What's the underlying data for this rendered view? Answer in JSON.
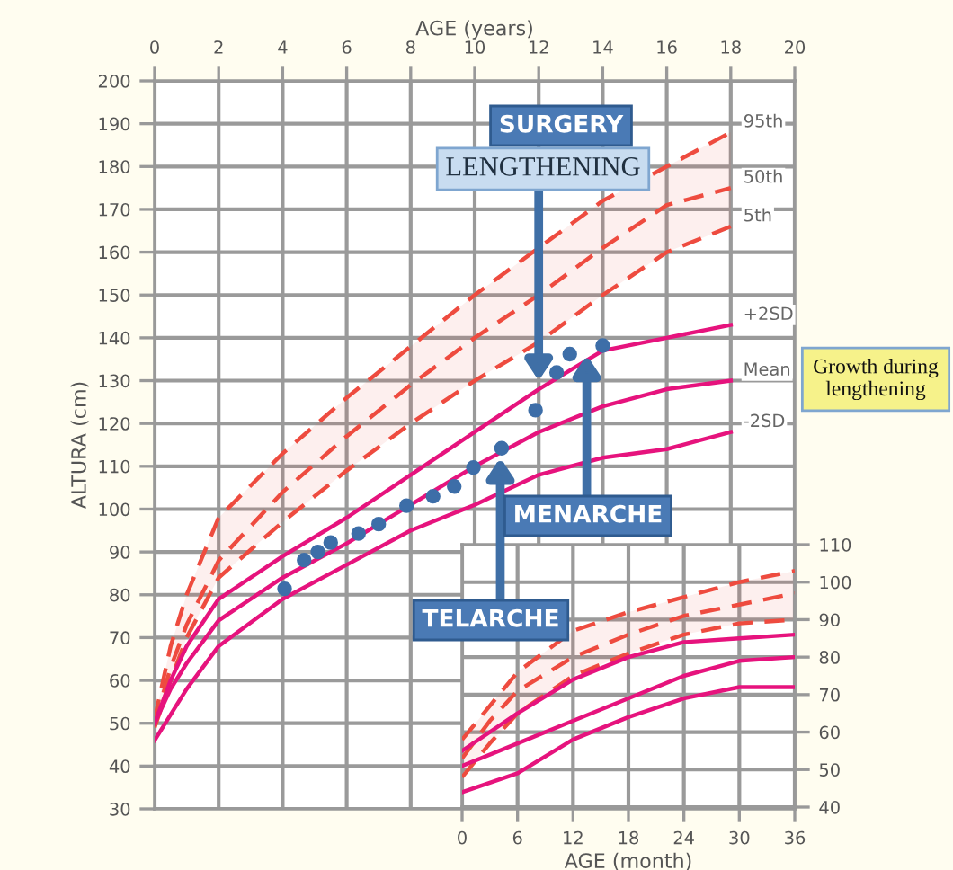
{
  "chart_data": [
    {
      "type": "line",
      "xlabel": "AGE (years)",
      "ylabel": "ALTURA (cm)",
      "xlim": [
        0,
        20
      ],
      "ylim": [
        30,
        200
      ],
      "xticks": [
        0,
        2,
        4,
        6,
        8,
        10,
        12,
        14,
        16,
        18,
        20
      ],
      "yticks": [
        30,
        40,
        50,
        60,
        70,
        80,
        90,
        100,
        110,
        120,
        130,
        140,
        150,
        160,
        170,
        180,
        190,
        200
      ],
      "grid": true,
      "legend": false,
      "series": [
        {
          "name": "95th",
          "line_style": "dashed",
          "marker": "none",
          "color": "#ee4b3f",
          "x": [
            0,
            0.5,
            1,
            2,
            4,
            6,
            8,
            10,
            12,
            14,
            16,
            18
          ],
          "values": [
            51,
            68,
            80,
            98,
            113,
            126,
            138,
            150,
            161,
            172,
            180,
            188
          ]
        },
        {
          "name": "50th",
          "line_style": "dashed",
          "marker": "none",
          "color": "#ee4b3f",
          "x": [
            0,
            0.5,
            1,
            2,
            4,
            6,
            8,
            10,
            12,
            14,
            16,
            18
          ],
          "values": [
            50,
            63,
            73,
            88,
            104,
            117,
            129,
            140,
            150,
            161,
            171,
            175
          ],
          "lower": [
            49,
            60,
            70,
            84,
            97,
            109,
            120,
            130,
            139,
            150,
            160,
            166
          ],
          "upper": [
            51,
            68,
            80,
            98,
            113,
            126,
            138,
            150,
            161,
            172,
            180,
            188
          ]
        },
        {
          "name": "5th",
          "line_style": "dashed",
          "marker": "none",
          "color": "#ee4b3f",
          "x": [
            0,
            0.5,
            1,
            2,
            4,
            6,
            8,
            10,
            12,
            14,
            16,
            18
          ],
          "values": [
            49,
            60,
            70,
            84,
            97,
            109,
            120,
            130,
            139,
            150,
            160,
            166
          ]
        },
        {
          "name": "+2SD",
          "line_style": "solid",
          "marker": "none",
          "color": "#e6137d",
          "x": [
            0,
            0.5,
            1,
            2,
            4,
            6,
            8,
            10,
            12,
            14,
            16,
            18
          ],
          "values": [
            50,
            60,
            68,
            79,
            89,
            98,
            108,
            118,
            128,
            137,
            140,
            143
          ]
        },
        {
          "name": "Mean",
          "line_style": "solid",
          "marker": "none",
          "color": "#e6137d",
          "x": [
            0,
            0.5,
            1,
            2,
            4,
            6,
            8,
            10,
            12,
            14,
            16,
            18
          ],
          "values": [
            50,
            58,
            64,
            74,
            84,
            92,
            101,
            110,
            118,
            124,
            128,
            130
          ]
        },
        {
          "name": "-2SD",
          "line_style": "solid",
          "marker": "none",
          "color": "#e6137d",
          "x": [
            0,
            0.5,
            1,
            2,
            4,
            6,
            8,
            10,
            12,
            14,
            16,
            18
          ],
          "values": [
            46,
            52,
            58,
            68,
            79,
            87,
            95,
            101,
            108,
            112,
            114,
            118
          ]
        },
        {
          "type": "scatter",
          "marker": "circle",
          "color": "#3d6ea8",
          "x": [
            4.06,
            4.67,
            5.1,
            5.5,
            6.37,
            7.0,
            7.87,
            8.7,
            9.36,
            9.96,
            10.84,
            11.9,
            12.56,
            12.97,
            14.0
          ],
          "values": [
            81.4,
            88.1,
            90,
            92.2,
            94.3,
            96.5,
            100.8,
            103,
            105.3,
            109.7,
            114.2,
            123.1,
            131.9,
            136.2,
            138.2
          ]
        }
      ],
      "annotations": [
        "SURGERY",
        {
          "text": "LENGTHENING",
          "x": 12,
          "y": 130
        },
        {
          "text": "MENARCHE",
          "x": 13.5,
          "y": 136
        },
        {
          "text": "TELARCHE",
          "x": 10.8,
          "y": 112
        },
        "Growth during\nlengthening"
      ]
    },
    {
      "type": "line",
      "xlabel": "AGE (month)",
      "xlim": [
        0,
        36
      ],
      "ylim": [
        40,
        110
      ],
      "xticks": [
        0,
        6,
        12,
        18,
        24,
        30,
        36
      ],
      "yticks": [
        40,
        50,
        60,
        70,
        80,
        90,
        100,
        110
      ],
      "grid": true,
      "legend": false,
      "series": [
        {
          "line_style": "dashed",
          "marker": "none",
          "color": "#ee4b3f",
          "x": [
            0,
            3,
            6,
            12,
            18,
            24,
            30,
            36
          ],
          "values": [
            58,
            67,
            76,
            87,
            92,
            96,
            100,
            103
          ]
        },
        {
          "line_style": "dashed",
          "marker": "none",
          "color": "#ee4b3f",
          "x": [
            0,
            3,
            6,
            12,
            18,
            24,
            30,
            36
          ],
          "values": [
            53,
            63,
            71,
            80,
            86,
            91,
            94,
            97
          ],
          "lower": [
            48,
            57,
            65,
            75,
            81,
            86,
            89,
            90
          ],
          "upper": [
            58,
            67,
            76,
            87,
            92,
            96,
            100,
            103
          ]
        },
        {
          "line_style": "dashed",
          "marker": "none",
          "color": "#ee4b3f",
          "x": [
            0,
            3,
            6,
            12,
            18,
            24,
            30,
            36
          ],
          "values": [
            48,
            57,
            65,
            75,
            81,
            86,
            89,
            90
          ]
        },
        {
          "line_style": "solid",
          "marker": "none",
          "color": "#e6137d",
          "x": [
            0,
            6,
            12,
            18,
            24,
            30,
            36
          ],
          "values": [
            55,
            65,
            74,
            80,
            84,
            85,
            86
          ]
        },
        {
          "line_style": "solid",
          "marker": "none",
          "color": "#e6137d",
          "x": [
            0,
            6,
            12,
            18,
            24,
            30,
            36
          ],
          "values": [
            51,
            57,
            63,
            69,
            75,
            79,
            80
          ]
        },
        {
          "line_style": "solid",
          "marker": "none",
          "color": "#e6137d",
          "x": [
            0,
            6,
            12,
            18,
            24,
            30,
            36
          ],
          "values": [
            44,
            49,
            58,
            64,
            69,
            72,
            72
          ]
        }
      ]
    }
  ]
}
